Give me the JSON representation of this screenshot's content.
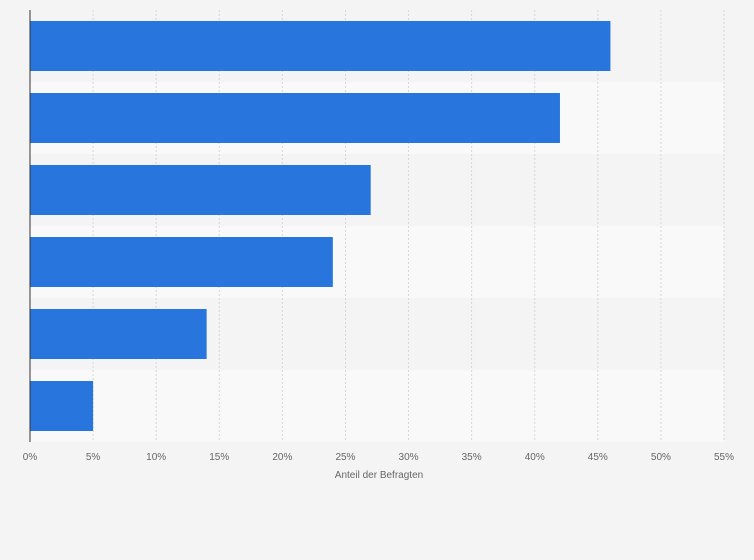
{
  "chart_data": {
    "type": "bar",
    "orientation": "horizontal",
    "categories": [
      "",
      "",
      "",
      "",
      "",
      ""
    ],
    "values": [
      46,
      42,
      27,
      24,
      14,
      5
    ],
    "value_unit": "%",
    "xlabel": "Anteil der Befragten",
    "ylabel": "",
    "xlim": [
      0,
      55
    ],
    "x_ticks": [
      "0%",
      "5%",
      "10%",
      "15%",
      "20%",
      "25%",
      "30%",
      "35%",
      "40%",
      "45%",
      "50%",
      "55%"
    ],
    "grid": "vertical dashed",
    "legend": "none",
    "bar_color": "#2876dd",
    "band_colors": [
      "#f4f4f4",
      "#f9f9f9"
    ],
    "background": "#f4f4f4"
  }
}
